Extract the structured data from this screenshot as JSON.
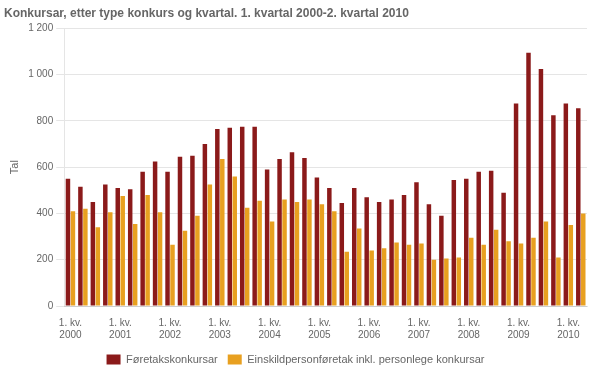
{
  "chart_data": {
    "type": "bar",
    "title": "Konkursar, etter type konkurs og kvartal. 1. kvartal 2000-2. kvartal 2010",
    "ylabel": "Tal",
    "categories": [
      "1. kv.\n2000",
      null,
      null,
      null,
      "1. kv.\n2001",
      null,
      null,
      null,
      "1. kv.\n2002",
      null,
      null,
      null,
      "1. kv.\n2003",
      null,
      null,
      null,
      "1. kv.\n2004",
      null,
      null,
      null,
      "1. kv.\n2005",
      null,
      null,
      null,
      "1. kv.\n2006",
      null,
      null,
      null,
      "1. kv.\n2007",
      null,
      null,
      null,
      "1. kv.\n2008",
      null,
      null,
      null,
      "1. kv.\n2009",
      null,
      null,
      null,
      "1. kv.\n2010",
      null
    ],
    "series": [
      {
        "name": "Føretakskonkursar",
        "color": "#8B1A1A",
        "values": [
          550,
          515,
          450,
          525,
          510,
          505,
          580,
          625,
          580,
          645,
          650,
          700,
          765,
          770,
          775,
          775,
          590,
          635,
          665,
          640,
          555,
          510,
          445,
          510,
          470,
          450,
          460,
          480,
          535,
          440,
          390,
          545,
          550,
          580,
          585,
          490,
          875,
          1095,
          1025,
          825,
          875,
          855
        ]
      },
      {
        "name": "Einskildpersonføretak inkl. personlege konkursar",
        "color": "#E8A020",
        "values": [
          410,
          420,
          340,
          405,
          475,
          355,
          480,
          405,
          265,
          325,
          390,
          525,
          635,
          560,
          425,
          455,
          365,
          460,
          450,
          460,
          440,
          410,
          235,
          335,
          240,
          250,
          275,
          265,
          270,
          200,
          205,
          210,
          295,
          265,
          330,
          280,
          270,
          295,
          365,
          210,
          350,
          400
        ]
      }
    ],
    "ylim": [
      0,
      1200
    ],
    "yticks": [
      0,
      200,
      400,
      600,
      800,
      {
        "value": 1000,
        "label": "1 000"
      },
      {
        "value": 1200,
        "label": "1 200"
      }
    ],
    "grid": true,
    "legend": "bottom"
  }
}
